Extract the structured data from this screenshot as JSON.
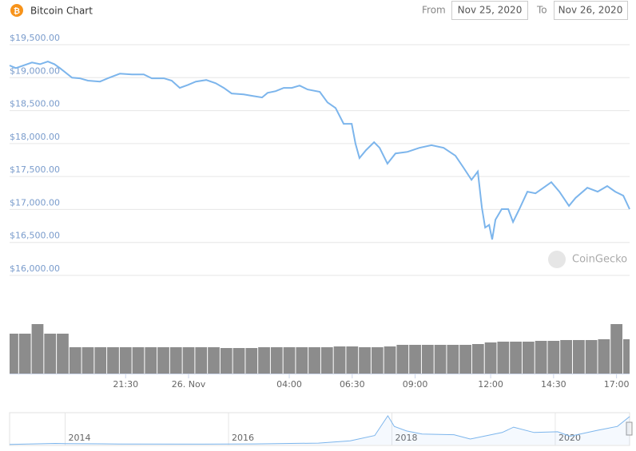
{
  "header": {
    "title": "Bitcoin Chart",
    "from_label": "From",
    "from_date": "Nov 25, 2020",
    "to_label": "To",
    "to_date": "Nov 26, 2020"
  },
  "watermark": "CoinGecko",
  "chart_data": [
    {
      "type": "line",
      "color": "#7cb5ec",
      "grid": true,
      "x": [
        -7.11,
        -6.86,
        -6.22,
        -5.9,
        -5.59,
        -5.33,
        -5.11,
        -4.63,
        -4.32,
        -4,
        -3.52,
        -3.21,
        -2.73,
        -2.25,
        -1.78,
        -1.46,
        -0.98,
        -0.67,
        -0.35,
        -0.03,
        0.29,
        0.7,
        1.08,
        1.4,
        1.71,
        2.19,
        2.51,
        2.92,
        3.14,
        3.46,
        3.78,
        4.1,
        4.41,
        4.73,
        5.21,
        5.52,
        5.84,
        6.16,
        6.48,
        6.63,
        6.79,
        7.05,
        7.37,
        7.59,
        7.9,
        8.22,
        8.7,
        9.17,
        9.65,
        10.13,
        10.6,
        10.92,
        11.24,
        11.49,
        11.65,
        11.78,
        11.94,
        12.06,
        12.19,
        12.44,
        12.7,
        12.89,
        13.14,
        13.46,
        13.78,
        14.1,
        14.41,
        14.73,
        15.11,
        15.37,
        15.84,
        16.25,
        16.63,
        16.95,
        17.27,
        17.52
      ],
      "values": [
        19185,
        19145,
        19230,
        19205,
        19245,
        19205,
        19145,
        19000,
        18990,
        18955,
        18940,
        18990,
        19060,
        19050,
        19050,
        18990,
        18990,
        18955,
        18845,
        18890,
        18940,
        18965,
        18915,
        18845,
        18760,
        18745,
        18725,
        18700,
        18770,
        18795,
        18845,
        18845,
        18880,
        18820,
        18785,
        18625,
        18540,
        18300,
        18300,
        18000,
        17780,
        17900,
        18020,
        17935,
        17695,
        17850,
        17875,
        17935,
        17975,
        17935,
        17815,
        17635,
        17450,
        17575,
        17030,
        16725,
        16765,
        16545,
        16845,
        17005,
        17005,
        16810,
        17005,
        17270,
        17245,
        17330,
        17415,
        17270,
        17055,
        17175,
        17330,
        17270,
        17355,
        17270,
        17210,
        17005
      ],
      "xlim": [
        -7.11,
        17.52
      ],
      "xticks": [
        {
          "value": -2.5,
          "label": "21:30"
        },
        {
          "value": 0,
          "label": "26. Nov"
        },
        {
          "value": 4,
          "label": "04:00"
        },
        {
          "value": 6.5,
          "label": "06:30"
        },
        {
          "value": 9,
          "label": "09:00"
        },
        {
          "value": 12,
          "label": "12:00"
        },
        {
          "value": 14.5,
          "label": "14:30"
        },
        {
          "value": 17,
          "label": "17:00"
        }
      ],
      "ylim": [
        16000,
        19500
      ],
      "yticks": [
        {
          "value": 16000,
          "label": "$16,000.00"
        },
        {
          "value": 16500,
          "label": "$16,500.00"
        },
        {
          "value": 17000,
          "label": "$17,000.00"
        },
        {
          "value": 17500,
          "label": "$17,500.00"
        },
        {
          "value": 18000,
          "label": "$18,000.00"
        },
        {
          "value": 18500,
          "label": "$18,500.00"
        },
        {
          "value": 19000,
          "label": "$19,000.00"
        },
        {
          "value": 19500,
          "label": "$19,500.00"
        }
      ]
    },
    {
      "type": "bar",
      "color": "#8c8c8c",
      "x": [
        -7,
        -6.5,
        -6,
        -5.5,
        -5,
        -4.5,
        -4,
        -3.5,
        -3,
        -2.5,
        -2,
        -1.5,
        -1,
        -0.5,
        0,
        0.5,
        1,
        1.5,
        2,
        2.5,
        3,
        3.5,
        4,
        4.5,
        5,
        5.5,
        6,
        6.5,
        7,
        7.5,
        8,
        8.5,
        9,
        9.5,
        10,
        10.5,
        11,
        11.5,
        12,
        12.5,
        13,
        13.5,
        14,
        14.5,
        15,
        15.5,
        16,
        16.5,
        17,
        17.5
      ],
      "values": [
        50,
        50,
        62,
        50,
        50,
        33,
        33,
        33,
        33,
        33,
        33,
        33,
        33,
        33,
        33,
        33,
        33,
        32,
        32,
        32,
        33,
        33,
        33,
        33,
        33,
        33,
        34,
        34,
        33,
        33,
        34,
        36,
        36,
        36,
        36,
        36,
        36,
        37,
        39,
        40,
        40,
        40,
        41,
        41,
        42,
        42,
        42,
        43,
        62,
        43
      ],
      "xlim": [
        -7.11,
        17.52
      ],
      "ylim": [
        0,
        70
      ]
    },
    {
      "type": "area",
      "color": "#7cb5ec",
      "x": [
        2013.32,
        2013.88,
        2014,
        2014.66,
        2015.64,
        2016.32,
        2017.1,
        2017.49,
        2017.79,
        2017.95,
        2018.03,
        2018.18,
        2018.37,
        2018.76,
        2018.96,
        2019.35,
        2019.49,
        2019.74,
        2020.03,
        2020.18,
        2020.52,
        2020.76,
        2020.91
      ],
      "values": [
        100,
        800,
        700,
        400,
        300,
        450,
        1000,
        2500,
        6000,
        19000,
        12000,
        9000,
        7000,
        6500,
        3700,
        8000,
        11500,
        8000,
        8500,
        5500,
        9500,
        12000,
        18500
      ],
      "xlim": [
        2013.32,
        2020.91
      ],
      "ylim": [
        0,
        20000
      ],
      "xticks": [
        2014,
        2016,
        2018,
        2020
      ]
    }
  ]
}
